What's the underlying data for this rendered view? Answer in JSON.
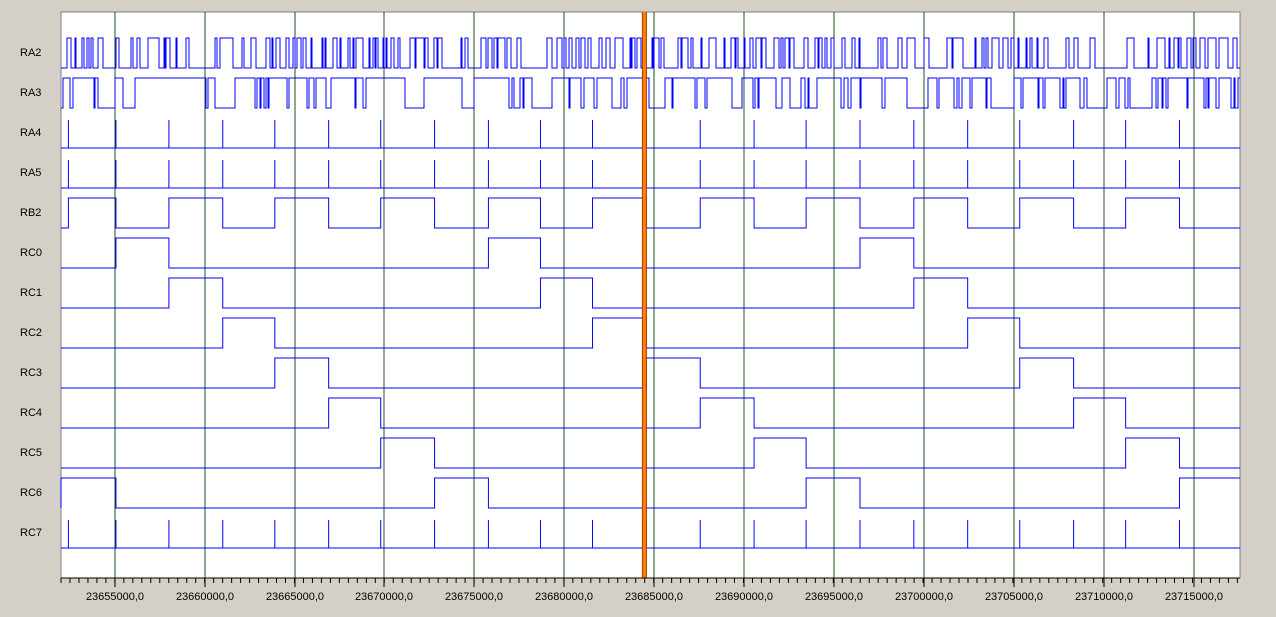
{
  "window": {
    "frame_color": "#d4d0c8",
    "panel_color": "#ffffff"
  },
  "colors": {
    "trace": "#0000ff",
    "grid": "#1f4d1f",
    "cursor_fill": "#ff8000",
    "cursor_edge": "#a04000"
  },
  "time_axis": {
    "ticks": [
      "23655000,0",
      "23660000,0",
      "23665000,0",
      "23670000,0",
      "23675000,0",
      "23680000,0",
      "23685000,0",
      "23690000,0",
      "23695000,0",
      "23700000,0",
      "23705000,0",
      "23710000,0",
      "23715000,0"
    ],
    "period_t": [
      2.95,
      5.9,
      8.9,
      11.8,
      14.8,
      17.7,
      20.7,
      23.7,
      26.6,
      29.5,
      32.5,
      35.5,
      38.5,
      41.4,
      44.4,
      47.4,
      50.4,
      53.3,
      56.3,
      59.2,
      62.2
    ],
    "cursor_t": 32.0
  },
  "signals": [
    {
      "name": "RA2",
      "kind": "pulses",
      "density": 0.4
    },
    {
      "name": "RA3",
      "kind": "pulses",
      "density": 0.85
    },
    {
      "name": "RA4",
      "kind": "spikes"
    },
    {
      "name": "RA5",
      "kind": "spikes"
    },
    {
      "name": "RB2",
      "kind": "square"
    },
    {
      "name": "RC0",
      "kind": "step",
      "slot": 0
    },
    {
      "name": "RC1",
      "kind": "step",
      "slot": 1
    },
    {
      "name": "RC2",
      "kind": "step",
      "slot": 2
    },
    {
      "name": "RC3",
      "kind": "step",
      "slot": 3
    },
    {
      "name": "RC4",
      "kind": "step",
      "slot": 4
    },
    {
      "name": "RC5",
      "kind": "step",
      "slot": 5
    },
    {
      "name": "RC6",
      "kind": "step",
      "slot": 6
    },
    {
      "name": "RC7",
      "kind": "spikes"
    }
  ]
}
